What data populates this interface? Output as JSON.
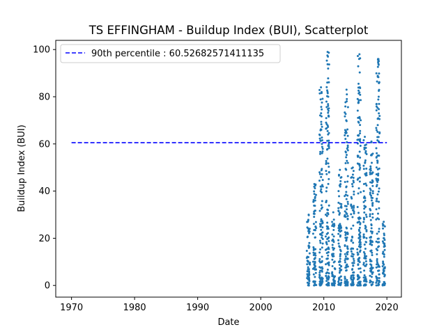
{
  "chart_data": {
    "type": "scatter",
    "title": "TS EFFINGHAM - Buildup Index (BUI), Scatterplot",
    "xlabel": "Date",
    "ylabel": "Buildup Index (BUI)",
    "xlim": [
      1967.5,
      2022.3
    ],
    "ylim": [
      -4.95,
      103.9
    ],
    "x_ticks": [
      1970,
      1980,
      1990,
      2000,
      2010,
      2020
    ],
    "y_ticks": [
      0,
      20,
      40,
      60,
      80,
      100
    ],
    "grid": false,
    "legend_position": "top-left",
    "series_color": "#1f77b4",
    "percentile_line": {
      "label": "90th percentile : 60.52682571411135",
      "value": 60.52682571411135,
      "x_start": 1970,
      "x_end": 2020,
      "color": "#0000ff",
      "style": "dashed"
    },
    "seasons": [
      {
        "start": 2007.3,
        "end": 2007.8,
        "max": 30
      },
      {
        "start": 2008.3,
        "end": 2008.8,
        "max": 43
      },
      {
        "start": 2009.3,
        "end": 2009.85,
        "max": 84
      },
      {
        "start": 2010.3,
        "end": 2010.85,
        "max": 99
      },
      {
        "start": 2011.3,
        "end": 2011.8,
        "max": 31
      },
      {
        "start": 2012.3,
        "end": 2012.8,
        "max": 49
      },
      {
        "start": 2013.3,
        "end": 2013.85,
        "max": 83
      },
      {
        "start": 2014.3,
        "end": 2014.8,
        "max": 50
      },
      {
        "start": 2015.3,
        "end": 2015.85,
        "max": 98
      },
      {
        "start": 2016.3,
        "end": 2016.8,
        "max": 63
      },
      {
        "start": 2017.3,
        "end": 2017.8,
        "max": 61
      },
      {
        "start": 2018.3,
        "end": 2018.85,
        "max": 96
      },
      {
        "start": 2019.3,
        "end": 2019.7,
        "max": 27
      }
    ],
    "points": [
      [
        2007.45,
        27
      ],
      [
        2007.6,
        30
      ],
      [
        2007.7,
        18
      ],
      [
        2007.55,
        12
      ],
      [
        2007.4,
        6
      ],
      [
        2008.5,
        43
      ],
      [
        2008.6,
        37
      ],
      [
        2008.7,
        25
      ],
      [
        2008.4,
        15
      ],
      [
        2009.55,
        84
      ],
      [
        2009.65,
        82
      ],
      [
        2009.6,
        66
      ],
      [
        2009.7,
        60
      ],
      [
        2009.5,
        40
      ],
      [
        2010.6,
        99
      ],
      [
        2010.65,
        97
      ],
      [
        2010.55,
        86
      ],
      [
        2010.7,
        80
      ],
      [
        2010.75,
        72
      ],
      [
        2011.5,
        31
      ],
      [
        2011.6,
        25
      ],
      [
        2011.4,
        16
      ],
      [
        2012.55,
        49
      ],
      [
        2012.65,
        43
      ],
      [
        2012.45,
        30
      ],
      [
        2013.6,
        83
      ],
      [
        2013.65,
        81
      ],
      [
        2013.55,
        70
      ],
      [
        2013.7,
        58
      ],
      [
        2013.75,
        44
      ],
      [
        2014.6,
        50
      ],
      [
        2014.5,
        43
      ],
      [
        2014.7,
        32
      ],
      [
        2015.65,
        98
      ],
      [
        2015.6,
        96
      ],
      [
        2015.7,
        84
      ],
      [
        2015.55,
        69
      ],
      [
        2015.75,
        62
      ],
      [
        2016.5,
        63
      ],
      [
        2016.6,
        53
      ],
      [
        2016.65,
        47
      ],
      [
        2016.7,
        30
      ],
      [
        2017.55,
        61
      ],
      [
        2017.6,
        52
      ],
      [
        2017.5,
        38
      ],
      [
        2018.6,
        96
      ],
      [
        2018.65,
        94
      ],
      [
        2018.7,
        80
      ],
      [
        2018.55,
        68
      ],
      [
        2018.75,
        55
      ],
      [
        2019.5,
        27
      ],
      [
        2019.55,
        20
      ],
      [
        2019.45,
        18
      ]
    ]
  }
}
